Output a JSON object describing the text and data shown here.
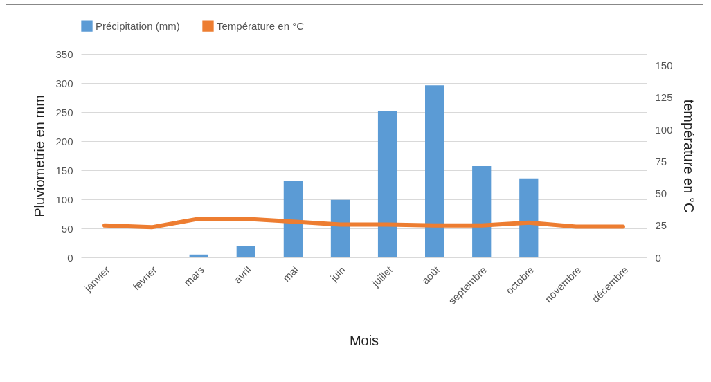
{
  "chart_data": {
    "type": "bar",
    "xlabel": "Mois",
    "ylabel": "Pluviometrie en mm",
    "y2label": "température en °C",
    "categories": [
      "janvier",
      "fevrier",
      "mars",
      "avril",
      "mai",
      "juin",
      "juillet",
      "août",
      "septembre",
      "octobre",
      "novembre",
      "décembre"
    ],
    "series": [
      {
        "name": "Précipitation (mm)",
        "color": "#5b9bd5",
        "values": [
          0,
          0,
          5,
          20,
          131,
          99,
          252,
          296,
          157,
          136,
          0,
          0
        ]
      },
      {
        "name": "Température en °C",
        "type": "line",
        "axis": "y2",
        "color": "#ed7d31",
        "values": [
          25,
          23.6,
          30.2,
          30.2,
          28,
          25.7,
          25.7,
          25,
          25,
          27.2,
          24.1,
          24.1
        ]
      }
    ],
    "ylim": [
      0,
      350
    ],
    "yticks": [
      0,
      50,
      100,
      150,
      200,
      250,
      300,
      350
    ],
    "y2lim": [
      0,
      159
    ],
    "y2ticks": [
      0,
      25,
      50,
      75,
      100,
      125,
      150
    ],
    "grid": "y",
    "legend": "top",
    "marker": "none",
    "line_style": "solid"
  }
}
